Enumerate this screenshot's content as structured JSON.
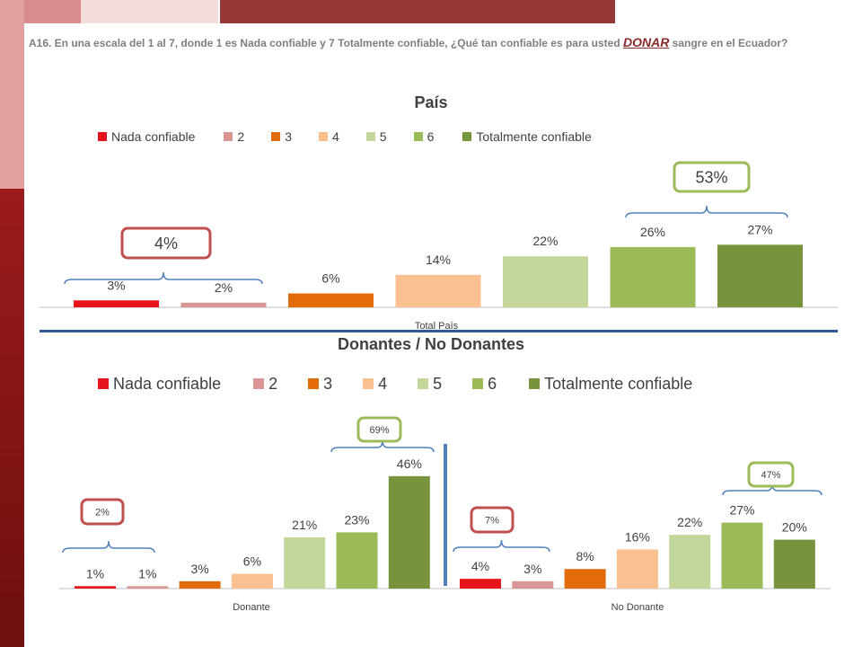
{
  "question": {
    "prefix": "A16. En una escala del 1 al 7, donde 1 es Nada confiable y 7 Totalmente confiable, ¿Qué tan confiable es para usted ",
    "emphasis": "DONAR",
    "suffix": " sangre en el Ecuador?"
  },
  "legend_items": [
    {
      "label": "Nada confiable",
      "color": "#e8141c"
    },
    {
      "label": "2",
      "color": "#d99694"
    },
    {
      "label": "3",
      "color": "#e26b0a"
    },
    {
      "label": "4",
      "color": "#fac090"
    },
    {
      "label": "5",
      "color": "#c4d79b"
    },
    {
      "label": "6",
      "color": "#9bbb59"
    },
    {
      "label": "Totalmente confiable",
      "color": "#77933c"
    }
  ],
  "chart_data": [
    {
      "type": "bar",
      "title": "País",
      "categories": [
        "Total País"
      ],
      "series": [
        {
          "name": "Nada confiable",
          "values": [
            3
          ],
          "label": "3%"
        },
        {
          "name": "2",
          "values": [
            2
          ],
          "label": "2%"
        },
        {
          "name": "3",
          "values": [
            6
          ],
          "label": "6%"
        },
        {
          "name": "4",
          "values": [
            14
          ],
          "label": "14%"
        },
        {
          "name": "5",
          "values": [
            22
          ],
          "label": "22%"
        },
        {
          "name": "6",
          "values": [
            26
          ],
          "label": "26%"
        },
        {
          "name": "Totalmente confiable",
          "values": [
            27
          ],
          "label": "27%"
        }
      ],
      "group_callouts": [
        {
          "text": "4%",
          "color": "#c0504d"
        },
        {
          "text": "53%",
          "color": "#9bbb59"
        }
      ],
      "legend_position": "top"
    },
    {
      "type": "bar",
      "title": "Donantes / No Donantes",
      "categories": [
        "Donante",
        "No Donante"
      ],
      "series": [
        {
          "name": "Nada confiable",
          "values": [
            1,
            4
          ],
          "labels": [
            "1%",
            "4%"
          ]
        },
        {
          "name": "2",
          "values": [
            1,
            3
          ],
          "labels": [
            "1%",
            "3%"
          ]
        },
        {
          "name": "3",
          "values": [
            3,
            8
          ],
          "labels": [
            "3%",
            "8%"
          ]
        },
        {
          "name": "4",
          "values": [
            6,
            16
          ],
          "labels": [
            "6%",
            "16%"
          ]
        },
        {
          "name": "5",
          "values": [
            21,
            22
          ],
          "labels": [
            "21%",
            "22%"
          ]
        },
        {
          "name": "6",
          "values": [
            23,
            27
          ],
          "labels": [
            "23%",
            "27%"
          ]
        },
        {
          "name": "Totalmente confiable",
          "values": [
            46,
            20
          ],
          "labels": [
            "46%",
            "20%"
          ]
        }
      ],
      "group_callouts": [
        {
          "text": "2%",
          "color": "#c0504d"
        },
        {
          "text": "69%",
          "color": "#9bbb59"
        },
        {
          "text": "7%",
          "color": "#c0504d"
        },
        {
          "text": "47%",
          "color": "#9bbb59"
        }
      ],
      "legend_position": "top"
    }
  ]
}
